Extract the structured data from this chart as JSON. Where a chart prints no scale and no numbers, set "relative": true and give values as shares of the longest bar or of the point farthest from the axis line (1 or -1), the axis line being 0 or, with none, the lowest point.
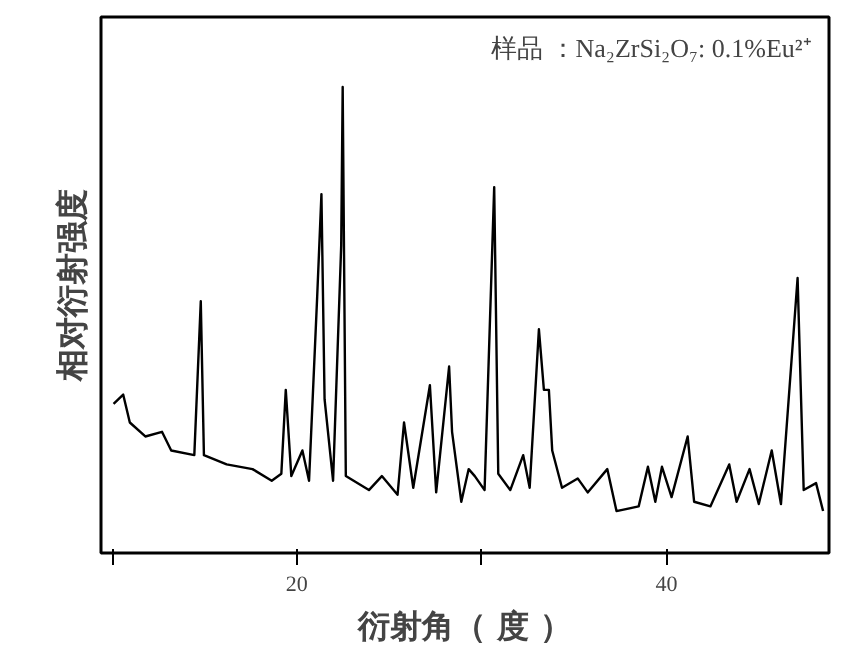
{
  "chart_data": {
    "type": "line",
    "relative": true,
    "xlabel": "衍射角（ 度 ）",
    "ylabel": "相对衍射强度",
    "annotations": [
      "样品 ：Na₂ZrSi₂O₇: 0.1%Eu²⁺"
    ],
    "xlim": [
      9.4,
      48.8
    ],
    "xticks": [
      {
        "value": 10,
        "label": null
      },
      20,
      {
        "value": 30,
        "label": null
      },
      40
    ],
    "grid": false,
    "marker": "none",
    "line_style": "solid",
    "series": [
      {
        "color": "#000000",
        "x": [
          10.08,
          10.6,
          10.96,
          11.8,
          12.7,
          13.2,
          14.45,
          14.8,
          14.97,
          16.2,
          17.6,
          18.64,
          19.16,
          19.4,
          19.7,
          20.3,
          20.66,
          21.1,
          21.33,
          21.5,
          21.96,
          22.4,
          22.48,
          22.65,
          23.9,
          24.6,
          25.45,
          25.8,
          26.3,
          27.2,
          27.54,
          28.24,
          28.4,
          28.9,
          29.3,
          29.63,
          30.16,
          30.68,
          30.9,
          31.55,
          32.25,
          32.6,
          33.1,
          33.37,
          33.64,
          33.82,
          34.35,
          35.2,
          35.74,
          36.8,
          37.3,
          38.5,
          39.0,
          39.4,
          39.76,
          40.28,
          41.15,
          41.5,
          42.38,
          43.4,
          43.8,
          44.5,
          45.0,
          45.7,
          46.2,
          47.1,
          47.43,
          48.1,
          48.48
        ],
        "values": [
          0.32,
          0.34,
          0.28,
          0.25,
          0.26,
          0.22,
          0.21,
          0.54,
          0.21,
          0.19,
          0.18,
          0.155,
          0.17,
          0.35,
          0.165,
          0.22,
          0.155,
          0.55,
          0.77,
          0.33,
          0.155,
          0.66,
          1.0,
          0.165,
          0.135,
          0.165,
          0.125,
          0.28,
          0.14,
          0.36,
          0.13,
          0.4,
          0.26,
          0.11,
          0.18,
          0.165,
          0.135,
          0.785,
          0.17,
          0.135,
          0.21,
          0.14,
          0.48,
          0.35,
          0.35,
          0.22,
          0.14,
          0.16,
          0.13,
          0.18,
          0.09,
          0.1,
          0.185,
          0.11,
          0.185,
          0.12,
          0.25,
          0.11,
          0.1,
          0.19,
          0.11,
          0.18,
          0.105,
          0.22,
          0.105,
          0.59,
          0.135,
          0.15,
          0.09
        ]
      }
    ]
  }
}
